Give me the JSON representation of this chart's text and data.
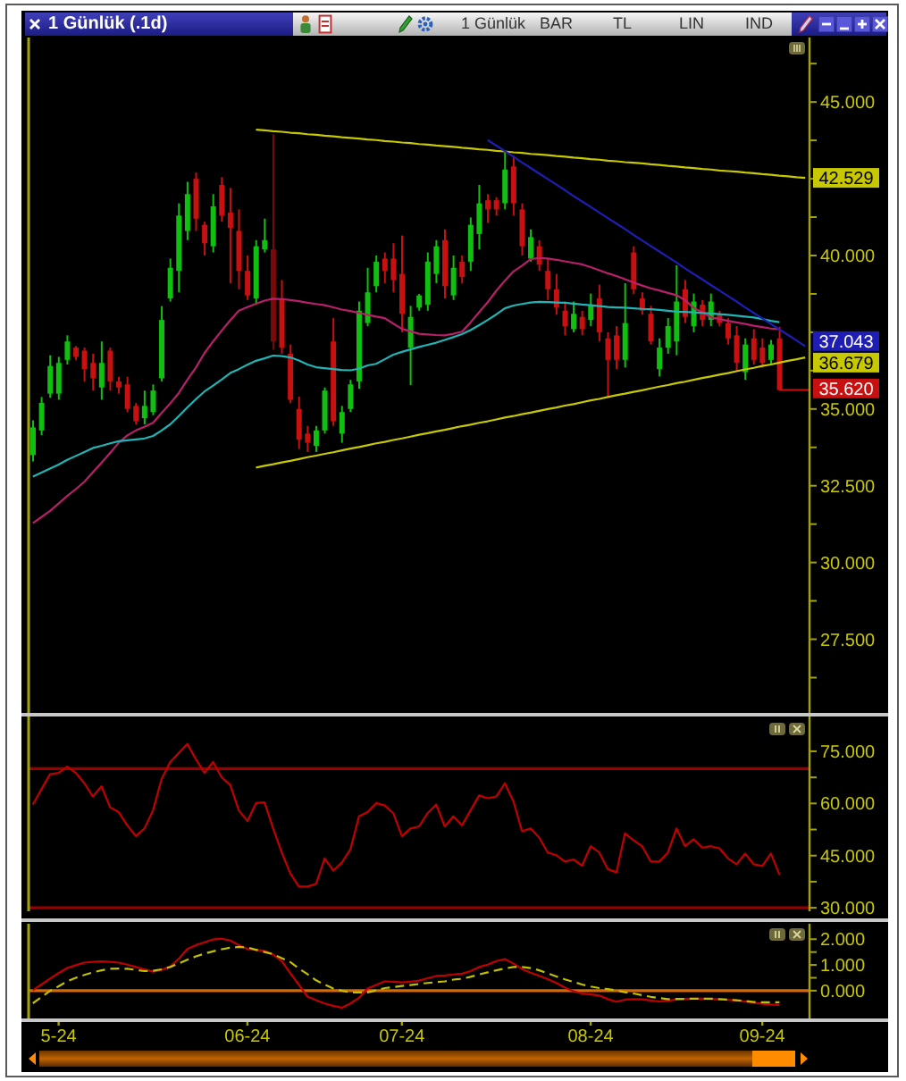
{
  "chart_data": [
    {
      "type": "candlestick",
      "title": "1 Günlük (.1d)",
      "annotations": [
        "1 Günlük",
        "BAR",
        "TL",
        "LIN",
        "IND"
      ],
      "categories": [
        null,
        null,
        null,
        null,
        null,
        null,
        null,
        null,
        null,
        null,
        null,
        null,
        null,
        null,
        null,
        null,
        null,
        null,
        null,
        null,
        null,
        null,
        null,
        null,
        null,
        null,
        null,
        null,
        null,
        null,
        null,
        null,
        null,
        null,
        null,
        null,
        null,
        null,
        null,
        null,
        null,
        null,
        null,
        null,
        null,
        null,
        null,
        null,
        null,
        null,
        null,
        null,
        null,
        null,
        null,
        null,
        null,
        null,
        null,
        null,
        null,
        null,
        null,
        null,
        null,
        null,
        null,
        null,
        null,
        null,
        null,
        null,
        null,
        null,
        null,
        null,
        null,
        null,
        null,
        null,
        null,
        null,
        null,
        null,
        null,
        null,
        null,
        null,
        null,
        null,
        null
      ],
      "ohlc": [
        [
          33.5,
          34.63,
          33.29,
          34.4
        ],
        [
          34.3,
          35.39,
          34.15,
          35.2
        ],
        [
          35.5,
          36.75,
          35.37,
          36.4
        ],
        [
          35.5,
          36.7,
          35.3,
          36.5
        ],
        [
          36.6,
          37.4,
          36.45,
          37.2
        ],
        [
          37.0,
          37.05,
          36.6,
          36.7
        ],
        [
          36.9,
          37.0,
          35.9,
          36.3
        ],
        [
          36.5,
          36.8,
          35.6,
          36.0
        ],
        [
          35.7,
          37.2,
          35.3,
          36.5
        ],
        [
          36.9,
          37.0,
          35.6,
          35.9
        ],
        [
          35.9,
          36.05,
          35.5,
          35.7
        ],
        [
          35.8,
          36.05,
          34.9,
          35.0
        ],
        [
          35.1,
          35.2,
          34.5,
          34.6
        ],
        [
          34.7,
          35.6,
          34.5,
          35.1
        ],
        [
          34.9,
          35.8,
          34.8,
          35.6
        ],
        [
          36.0,
          38.35,
          35.9,
          37.9
        ],
        [
          38.6,
          39.9,
          38.5,
          39.6
        ],
        [
          39.5,
          41.7,
          38.8,
          41.3
        ],
        [
          40.8,
          42.4,
          40.5,
          42.0
        ],
        [
          42.5,
          42.7,
          40.8,
          41.2
        ],
        [
          41.0,
          41.1,
          40.0,
          40.4
        ],
        [
          40.3,
          42.0,
          40.1,
          41.6
        ],
        [
          42.3,
          42.55,
          41.1,
          41.3
        ],
        [
          41.4,
          42.2,
          39.1,
          40.9
        ],
        [
          40.8,
          41.5,
          38.9,
          39.5
        ],
        [
          39.5,
          40.0,
          38.55,
          38.7
        ],
        [
          38.6,
          40.5,
          38.4,
          40.3
        ],
        [
          40.2,
          41.2,
          40.1,
          40.5
        ],
        [
          40.2,
          43.95,
          36.93,
          37.2
        ],
        [
          38.6,
          39.2,
          36.8,
          37.0
        ],
        [
          36.8,
          37.1,
          35.2,
          35.3
        ],
        [
          35.0,
          35.4,
          33.7,
          34.0
        ],
        [
          34.2,
          34.45,
          33.6,
          33.9
        ],
        [
          33.8,
          34.45,
          33.6,
          34.3
        ],
        [
          34.3,
          35.7,
          34.2,
          35.6
        ],
        [
          37.2,
          37.96,
          34.45,
          34.6
        ],
        [
          34.2,
          35.1,
          33.9,
          34.9
        ],
        [
          35.0,
          35.95,
          34.9,
          35.8
        ],
        [
          35.9,
          38.5,
          35.66,
          38.2
        ],
        [
          37.8,
          39.6,
          37.7,
          38.8
        ],
        [
          39.0,
          40.0,
          38.8,
          39.8
        ],
        [
          39.9,
          40.1,
          39.1,
          39.5
        ],
        [
          39.9,
          40.4,
          38.8,
          39.2
        ],
        [
          39.4,
          40.65,
          37.5,
          38.1
        ],
        [
          37.0,
          38.36,
          35.78,
          38.0
        ],
        [
          38.3,
          38.75,
          38.2,
          38.7
        ],
        [
          38.4,
          40.1,
          38.2,
          39.8
        ],
        [
          39.4,
          40.5,
          39.1,
          40.3
        ],
        [
          40.5,
          40.85,
          38.6,
          39.0
        ],
        [
          38.7,
          40.0,
          38.55,
          39.6
        ],
        [
          39.8,
          40.0,
          39.1,
          39.3
        ],
        [
          39.8,
          41.24,
          39.5,
          41.0
        ],
        [
          40.7,
          42.3,
          40.2,
          41.7
        ],
        [
          41.8,
          42.0,
          41.06,
          41.5
        ],
        [
          41.8,
          41.9,
          41.3,
          41.5
        ],
        [
          41.7,
          43.36,
          41.5,
          42.8
        ],
        [
          42.9,
          43.25,
          41.3,
          41.7
        ],
        [
          41.5,
          41.7,
          40.0,
          40.3
        ],
        [
          39.9,
          40.85,
          39.8,
          40.6
        ],
        [
          40.3,
          40.5,
          39.5,
          39.7
        ],
        [
          39.5,
          39.9,
          38.55,
          38.9
        ],
        [
          38.9,
          39.4,
          38.07,
          38.3
        ],
        [
          38.2,
          38.5,
          37.4,
          37.7
        ],
        [
          37.6,
          38.5,
          37.5,
          38.1
        ],
        [
          38.0,
          38.2,
          37.4,
          37.6
        ],
        [
          37.9,
          38.76,
          37.7,
          38.4
        ],
        [
          38.6,
          39.05,
          37.2,
          37.5
        ],
        [
          37.3,
          37.5,
          35.4,
          36.6
        ],
        [
          37.4,
          37.7,
          36.3,
          36.6
        ],
        [
          36.6,
          39.1,
          36.35,
          37.8
        ],
        [
          40.1,
          40.3,
          38.75,
          38.9
        ],
        [
          38.6,
          38.8,
          38.07,
          38.2
        ],
        [
          38.1,
          38.36,
          37.1,
          37.2
        ],
        [
          36.3,
          37.3,
          36.06,
          37.0
        ],
        [
          37.0,
          37.96,
          36.8,
          37.7
        ],
        [
          37.2,
          39.68,
          36.75,
          38.5
        ],
        [
          38.9,
          39.2,
          37.8,
          38.0
        ],
        [
          37.7,
          38.76,
          37.5,
          38.5
        ],
        [
          38.4,
          38.55,
          37.7,
          37.9
        ],
        [
          37.9,
          38.76,
          37.7,
          38.5
        ],
        [
          38.1,
          38.2,
          37.7,
          37.8
        ],
        [
          37.8,
          37.96,
          37.1,
          37.3
        ],
        [
          37.4,
          37.7,
          36.24,
          36.5
        ],
        [
          36.2,
          37.3,
          35.95,
          37.1
        ],
        [
          37.3,
          37.6,
          36.45,
          36.6
        ],
        [
          37.0,
          37.3,
          36.35,
          36.5
        ],
        [
          36.6,
          37.25,
          36.45,
          37.1
        ],
        [
          37.3,
          37.68,
          35.6,
          35.62
        ],
        null,
        null,
        null
      ],
      "colors": [
        "#10c010",
        "#10c010",
        "#10c010",
        "#10c010",
        "#10c010",
        "#c81010",
        "#c81010",
        "#c81010",
        "#10c010",
        "#c81010",
        "#c81010",
        "#c81010",
        "#c81010",
        "#10c010",
        "#10c010",
        "#10c010",
        "#10c010",
        "#10c010",
        "#10c010",
        "#c81010",
        "#c81010",
        "#10c010",
        "#c81010",
        "#c81010",
        "#c81010",
        "#c81010",
        "#10c010",
        "#10c010",
        "#7a0a0a",
        "#c81010",
        "#c81010",
        "#c81010",
        "#c81010",
        "#10c010",
        "#10c010",
        "#c81010",
        "#10c010",
        "#10c010",
        "#10c010",
        "#10c010",
        "#10c010",
        "#c81010",
        "#c81010",
        "#c81010",
        "#10c010",
        "#10c010",
        "#10c010",
        "#10c010",
        "#c81010",
        "#10c010",
        "#c81010",
        "#10c010",
        "#10c010",
        "#c81010",
        "#c81010",
        "#10c010",
        "#c81010",
        "#c81010",
        "#10c010",
        "#c81010",
        "#c81010",
        "#c81010",
        "#c81010",
        "#10c010",
        "#c81010",
        "#10c010",
        "#c81010",
        "#c81010",
        "#c81010",
        "#10c010",
        "#c81010",
        "#c81010",
        "#c81010",
        "#10c010",
        "#10c010",
        "#10c010",
        "#c81010",
        "#10c010",
        "#c81010",
        "#10c010",
        "#c81010",
        "#c81010",
        "#c81010",
        "#10c010",
        "#c81010",
        "#c81010",
        "#10c010",
        "#c81010",
        null,
        null,
        null
      ],
      "value_labels": [
        null,
        null,
        null,
        null,
        null,
        null,
        null,
        null,
        null,
        null,
        null,
        null,
        null,
        null,
        null,
        null,
        null,
        null,
        null,
        null,
        null,
        null,
        null,
        null,
        null,
        null,
        null,
        null,
        null,
        null,
        null,
        null,
        null,
        null,
        null,
        null,
        null,
        null,
        null,
        null,
        null,
        null,
        null,
        null,
        null,
        null,
        null,
        null,
        null,
        null,
        null,
        null,
        null,
        null,
        null,
        null,
        null,
        null,
        null,
        null,
        null,
        null,
        null,
        null,
        null,
        null,
        null,
        null,
        null,
        null,
        null,
        null,
        null,
        null,
        null,
        null,
        null,
        null,
        null,
        null,
        null,
        null,
        null,
        null,
        null,
        null,
        null,
        "35.620",
        null,
        null,
        null
      ],
      "series": [
        {
          "type": "line",
          "color": "#b8206a",
          "values": [
            31.28,
            31.48,
            31.68,
            31.92,
            32.17,
            32.39,
            32.63,
            32.94,
            33.25,
            33.57,
            33.9,
            34.14,
            34.3,
            34.42,
            34.55,
            34.87,
            35.18,
            35.52,
            35.95,
            36.35,
            36.82,
            37.2,
            37.55,
            37.89,
            38.2,
            38.32,
            38.43,
            38.53,
            38.59,
            38.58,
            38.55,
            38.51,
            38.46,
            38.42,
            38.38,
            38.31,
            38.24,
            38.19,
            38.13,
            38.07,
            38.01,
            37.96,
            37.78,
            37.61,
            37.53,
            37.45,
            37.43,
            37.41,
            37.4,
            37.45,
            37.52,
            37.82,
            38.15,
            38.48,
            38.85,
            39.18,
            39.48,
            39.67,
            39.88,
            39.92,
            39.9,
            39.86,
            39.81,
            39.76,
            39.71,
            39.62,
            39.52,
            39.42,
            39.33,
            39.23,
            39.12,
            39.02,
            38.93,
            38.86,
            38.78,
            38.71,
            38.54,
            38.3,
            38.14,
            37.99,
            37.93,
            37.87,
            37.82,
            37.77,
            37.71,
            37.67,
            37.62,
            37.6,
            null,
            null,
            null
          ]
        },
        {
          "type": "line",
          "color": "#22b4b4",
          "values": [
            32.8,
            32.93,
            33.06,
            33.19,
            33.34,
            33.47,
            33.6,
            33.73,
            33.8,
            33.88,
            33.95,
            33.98,
            34.01,
            34.04,
            34.12,
            34.3,
            34.5,
            34.77,
            35.05,
            35.32,
            35.57,
            35.76,
            35.96,
            36.17,
            36.3,
            36.44,
            36.57,
            36.65,
            36.74,
            36.72,
            36.68,
            36.58,
            36.45,
            36.36,
            36.33,
            36.3,
            36.27,
            36.26,
            36.31,
            36.42,
            36.47,
            36.62,
            36.77,
            36.86,
            36.94,
            37.02,
            37.09,
            37.16,
            37.25,
            37.34,
            37.44,
            37.57,
            37.73,
            37.9,
            38.08,
            38.28,
            38.37,
            38.42,
            38.47,
            38.49,
            38.48,
            38.47,
            38.46,
            38.43,
            38.4,
            38.38,
            38.35,
            38.32,
            38.31,
            38.3,
            38.28,
            38.26,
            38.25,
            38.23,
            38.2,
            38.17,
            38.16,
            38.15,
            38.13,
            38.11,
            38.09,
            38.07,
            38.04,
            38.01,
            37.98,
            37.93,
            37.87,
            37.83,
            null,
            null,
            null
          ]
        },
        {
          "type": "line",
          "color": "#c8c800",
          "values": [
            null,
            null,
            null,
            null,
            null,
            null,
            null,
            null,
            null,
            null,
            null,
            null,
            null,
            null,
            null,
            null,
            null,
            null,
            null,
            null,
            null,
            null,
            null,
            null,
            null,
            null,
            44.1,
            44.08,
            44.05,
            44.03,
            44.0,
            43.98,
            43.95,
            43.93,
            43.9,
            43.88,
            43.85,
            43.83,
            43.81,
            43.78,
            43.76,
            43.73,
            43.71,
            43.68,
            43.66,
            43.63,
            43.61,
            43.58,
            43.56,
            43.54,
            43.51,
            43.49,
            43.46,
            43.44,
            43.41,
            43.39,
            43.36,
            43.34,
            43.31,
            43.29,
            43.27,
            43.24,
            43.22,
            43.19,
            43.17,
            43.14,
            43.12,
            43.09,
            43.07,
            43.04,
            43.02,
            43.0,
            42.97,
            42.95,
            42.92,
            42.9,
            42.87,
            42.85,
            42.82,
            42.8,
            42.77,
            42.75,
            42.73,
            42.7,
            42.68,
            42.65,
            42.63,
            42.6,
            42.58,
            42.55,
            42.529
          ],
          "value_labels": [
            null,
            null,
            null,
            null,
            null,
            null,
            null,
            null,
            null,
            null,
            null,
            null,
            null,
            null,
            null,
            null,
            null,
            null,
            null,
            null,
            null,
            null,
            null,
            null,
            null,
            null,
            null,
            null,
            null,
            null,
            null,
            null,
            null,
            null,
            null,
            null,
            null,
            null,
            null,
            null,
            null,
            null,
            null,
            null,
            null,
            null,
            null,
            null,
            null,
            null,
            null,
            null,
            null,
            null,
            null,
            null,
            null,
            null,
            null,
            null,
            null,
            null,
            null,
            null,
            null,
            null,
            null,
            null,
            null,
            null,
            null,
            null,
            null,
            null,
            null,
            null,
            null,
            null,
            null,
            null,
            null,
            null,
            null,
            null,
            null,
            null,
            null,
            null,
            null,
            null,
            "42.529"
          ]
        },
        {
          "type": "line",
          "color": "#c8c800",
          "values": [
            null,
            null,
            null,
            null,
            null,
            null,
            null,
            null,
            null,
            null,
            null,
            null,
            null,
            null,
            null,
            null,
            null,
            null,
            null,
            null,
            null,
            null,
            null,
            null,
            null,
            null,
            33.09,
            33.15,
            33.2,
            33.26,
            33.31,
            33.37,
            33.43,
            33.48,
            33.54,
            33.59,
            33.65,
            33.71,
            33.76,
            33.82,
            33.88,
            33.93,
            33.99,
            34.04,
            34.1,
            34.16,
            34.21,
            34.27,
            34.32,
            34.38,
            34.44,
            34.49,
            34.55,
            34.6,
            34.66,
            34.72,
            34.77,
            34.83,
            34.88,
            34.94,
            35.0,
            35.05,
            35.11,
            35.16,
            35.22,
            35.28,
            35.33,
            35.39,
            35.45,
            35.5,
            35.56,
            35.61,
            35.67,
            35.73,
            35.78,
            35.84,
            35.89,
            35.95,
            36.01,
            36.06,
            36.12,
            36.17,
            36.23,
            36.29,
            36.34,
            36.4,
            36.45,
            36.51,
            36.57,
            36.62,
            36.679
          ],
          "value_labels": [
            null,
            null,
            null,
            null,
            null,
            null,
            null,
            null,
            null,
            null,
            null,
            null,
            null,
            null,
            null,
            null,
            null,
            null,
            null,
            null,
            null,
            null,
            null,
            null,
            null,
            null,
            null,
            null,
            null,
            null,
            null,
            null,
            null,
            null,
            null,
            null,
            null,
            null,
            null,
            null,
            null,
            null,
            null,
            null,
            null,
            null,
            null,
            null,
            null,
            null,
            null,
            null,
            null,
            null,
            null,
            null,
            null,
            null,
            null,
            null,
            null,
            null,
            null,
            null,
            null,
            null,
            null,
            null,
            null,
            null,
            null,
            null,
            null,
            null,
            null,
            null,
            null,
            null,
            null,
            null,
            null,
            null,
            null,
            null,
            null,
            null,
            null,
            null,
            null,
            null,
            "36.679"
          ]
        },
        {
          "type": "line",
          "color": "#1e1eb4",
          "values": [
            null,
            null,
            null,
            null,
            null,
            null,
            null,
            null,
            null,
            null,
            null,
            null,
            null,
            null,
            null,
            null,
            null,
            null,
            null,
            null,
            null,
            null,
            null,
            null,
            null,
            null,
            null,
            null,
            null,
            null,
            null,
            null,
            null,
            null,
            null,
            null,
            null,
            null,
            null,
            null,
            null,
            null,
            null,
            null,
            null,
            null,
            null,
            null,
            null,
            null,
            null,
            null,
            null,
            43.76,
            43.58,
            43.4,
            43.22,
            43.03,
            42.85,
            42.67,
            42.49,
            42.31,
            42.13,
            41.94,
            41.76,
            41.58,
            41.4,
            41.22,
            41.04,
            40.86,
            40.67,
            40.49,
            40.31,
            40.13,
            39.95,
            39.77,
            39.58,
            39.4,
            39.22,
            39.04,
            38.86,
            38.68,
            38.5,
            38.31,
            38.13,
            37.95,
            37.77,
            37.59,
            37.41,
            37.23,
            37.043
          ],
          "value_labels": [
            null,
            null,
            null,
            null,
            null,
            null,
            null,
            null,
            null,
            null,
            null,
            null,
            null,
            null,
            null,
            null,
            null,
            null,
            null,
            null,
            null,
            null,
            null,
            null,
            null,
            null,
            null,
            null,
            null,
            null,
            null,
            null,
            null,
            null,
            null,
            null,
            null,
            null,
            null,
            null,
            null,
            null,
            null,
            null,
            null,
            null,
            null,
            null,
            null,
            null,
            null,
            null,
            null,
            null,
            null,
            null,
            null,
            null,
            null,
            null,
            null,
            null,
            null,
            null,
            null,
            null,
            null,
            null,
            null,
            null,
            null,
            null,
            null,
            null,
            null,
            null,
            null,
            null,
            null,
            null,
            null,
            null,
            null,
            null,
            null,
            null,
            null,
            null,
            null,
            null,
            "37.043"
          ]
        }
      ],
      "ylim": [
        25.1,
        47.1
      ],
      "yticks": [
        {
          "value": 26.25,
          "label": null
        },
        {
          "value": 27.5,
          "label": "27.500"
        },
        {
          "value": 28.75,
          "label": null
        },
        {
          "value": 30,
          "label": "30.000"
        },
        {
          "value": 31.25,
          "label": null
        },
        {
          "value": 32.5,
          "label": "32.500"
        },
        {
          "value": 33.75,
          "label": null
        },
        {
          "value": 35,
          "label": "35.000"
        },
        {
          "value": 36.25,
          "label": null
        },
        {
          "value": 37.5,
          "label": null
        },
        {
          "value": 38.75,
          "label": null
        },
        {
          "value": 40,
          "label": "40.000"
        },
        {
          "value": 41.25,
          "label": null
        },
        {
          "value": 42.5,
          "label": null
        },
        {
          "value": 43.75,
          "label": null
        },
        {
          "value": 45,
          "label": "45.000"
        },
        {
          "value": 46.25,
          "label": null
        }
      ],
      "tick_labels": "y"
    },
    {
      "type": "line",
      "categories": [
        null,
        null,
        null,
        null,
        null,
        null,
        null,
        null,
        null,
        null,
        null,
        null,
        null,
        null,
        null,
        null,
        null,
        null,
        null,
        null,
        null,
        null,
        null,
        null,
        null,
        null,
        null,
        null,
        null,
        null,
        null,
        null,
        null,
        null,
        null,
        null,
        null,
        null,
        null,
        null,
        null,
        null,
        null,
        null,
        null,
        null,
        null,
        null,
        null,
        null,
        null,
        null,
        null,
        null,
        null,
        null,
        null,
        null,
        null,
        null,
        null,
        null,
        null,
        null,
        null,
        null,
        null,
        null,
        null,
        null,
        null,
        null,
        null,
        null,
        null,
        null,
        null,
        null,
        null,
        null,
        null,
        null,
        null,
        null,
        null,
        null,
        null,
        null,
        null,
        null,
        null
      ],
      "series": [
        {
          "color": "#c00000",
          "values": [
            59.7,
            64.1,
            68.4,
            68.8,
            70.6,
            68.8,
            65.8,
            62.0,
            64.9,
            58.9,
            57.5,
            53.7,
            50.6,
            52.8,
            58.0,
            67.0,
            71.9,
            74.5,
            77.1,
            72.7,
            68.8,
            71.9,
            67.5,
            65.3,
            58.0,
            54.9,
            60.1,
            60.3,
            52.8,
            45.9,
            39.9,
            36.1,
            36.1,
            36.9,
            44.2,
            40.7,
            43.0,
            46.8,
            56.3,
            57.5,
            60.1,
            59.4,
            57.2,
            50.6,
            52.8,
            53.4,
            57.2,
            59.7,
            53.4,
            56.3,
            53.7,
            58.0,
            62.3,
            61.5,
            62.0,
            65.8,
            60.6,
            52.0,
            52.8,
            50.2,
            45.9,
            45.1,
            43.3,
            43.9,
            42.1,
            47.7,
            45.9,
            41.1,
            40.2,
            51.4,
            49.4,
            47.7,
            43.3,
            43.3,
            45.9,
            52.8,
            47.7,
            49.7,
            47.3,
            47.7,
            47.1,
            44.2,
            42.5,
            45.6,
            42.5,
            42.0,
            45.6,
            39.5,
            null,
            null,
            null
          ]
        }
      ],
      "ylim": [
        29,
        85
      ],
      "yticks": [
        {
          "value": 30,
          "label": "30.000"
        },
        {
          "value": 37.5,
          "label": null
        },
        {
          "value": 45,
          "label": "45.000"
        },
        {
          "value": 52.5,
          "label": null
        },
        {
          "value": 60,
          "label": "60.000"
        },
        {
          "value": 67.5,
          "label": null
        },
        {
          "value": 75,
          "label": "75.000"
        }
      ],
      "ref_lines": [
        {
          "axis": "y",
          "value": 70,
          "color": "#9a0000"
        },
        {
          "axis": "y",
          "value": 30,
          "color": "#9a0000"
        }
      ],
      "tick_labels": "y"
    },
    {
      "type": "line",
      "categories": [
        null,
        null,
        null,
        "5-24",
        null,
        null,
        null,
        null,
        null,
        null,
        null,
        null,
        null,
        null,
        null,
        null,
        null,
        null,
        null,
        null,
        null,
        null,
        null,
        null,
        null,
        "06-24",
        null,
        null,
        null,
        null,
        null,
        null,
        null,
        null,
        null,
        null,
        null,
        null,
        null,
        null,
        null,
        null,
        null,
        "07-24",
        null,
        null,
        null,
        null,
        null,
        null,
        null,
        null,
        null,
        null,
        null,
        null,
        null,
        null,
        null,
        null,
        null,
        null,
        null,
        null,
        null,
        "08-24",
        null,
        null,
        null,
        null,
        null,
        null,
        null,
        null,
        null,
        null,
        null,
        null,
        null,
        null,
        null,
        null,
        null,
        null,
        null,
        "09-24",
        null,
        null,
        null,
        null,
        null
      ],
      "series": [
        {
          "color": "#c00000",
          "values": [
            0.02,
            0.24,
            0.47,
            0.68,
            0.88,
            0.99,
            1.09,
            1.12,
            1.14,
            1.12,
            1.09,
            1.01,
            0.92,
            0.83,
            0.74,
            0.81,
            0.93,
            1.24,
            1.62,
            1.77,
            1.88,
            1.99,
            2.02,
            1.95,
            1.77,
            1.62,
            1.58,
            1.55,
            1.4,
            1.15,
            0.68,
            0.23,
            -0.23,
            -0.37,
            -0.5,
            -0.59,
            -0.66,
            -0.5,
            -0.28,
            0.08,
            0.22,
            0.36,
            0.35,
            0.32,
            0.35,
            0.39,
            0.48,
            0.57,
            0.59,
            0.63,
            0.66,
            0.76,
            0.92,
            1.01,
            1.15,
            1.23,
            1.05,
            0.84,
            0.7,
            0.58,
            0.45,
            0.3,
            0.12,
            -0.02,
            -0.11,
            -0.15,
            -0.19,
            -0.33,
            -0.43,
            -0.35,
            -0.33,
            -0.34,
            -0.38,
            -0.42,
            -0.39,
            -0.35,
            -0.32,
            -0.31,
            -0.31,
            -0.32,
            -0.34,
            -0.36,
            -0.38,
            -0.42,
            -0.47,
            -0.51,
            -0.54,
            -0.56,
            null,
            null,
            null
          ]
        },
        {
          "color": "#c0c000",
          "line_style": "dashed",
          "values": [
            -0.49,
            -0.25,
            -0.01,
            0.17,
            0.36,
            0.5,
            0.61,
            0.71,
            0.79,
            0.85,
            0.86,
            0.85,
            0.81,
            0.76,
            0.77,
            0.83,
            0.92,
            1.06,
            1.2,
            1.33,
            1.44,
            1.53,
            1.61,
            1.67,
            1.7,
            1.68,
            1.59,
            1.5,
            1.42,
            1.26,
            1.11,
            0.86,
            0.64,
            0.4,
            0.24,
            0.08,
            0.0,
            -0.07,
            -0.07,
            -0.07,
            0.01,
            0.1,
            0.14,
            0.18,
            0.22,
            0.26,
            0.3,
            0.33,
            0.36,
            0.43,
            0.46,
            0.54,
            0.63,
            0.71,
            0.79,
            0.86,
            0.92,
            0.92,
            0.88,
            0.79,
            0.67,
            0.55,
            0.44,
            0.34,
            0.24,
            0.16,
            0.1,
            0.06,
            0.01,
            -0.06,
            -0.11,
            -0.18,
            -0.24,
            -0.29,
            -0.33,
            -0.32,
            -0.32,
            -0.31,
            -0.31,
            -0.31,
            -0.33,
            -0.35,
            -0.37,
            -0.4,
            -0.44,
            -0.45,
            -0.45,
            -0.45,
            null,
            null,
            null
          ]
        }
      ],
      "ylim": [
        -1.15,
        2.6
      ],
      "yticks": [
        {
          "value": 0,
          "label": "0.000"
        },
        {
          "value": 0.5,
          "label": null
        },
        {
          "value": 1,
          "label": "1.000"
        },
        {
          "value": 1.5,
          "label": null
        },
        {
          "value": 2,
          "label": "2.000"
        }
      ],
      "ref_lines": [
        {
          "axis": "y",
          "value": 0,
          "color": "#d86800"
        }
      ]
    }
  ]
}
